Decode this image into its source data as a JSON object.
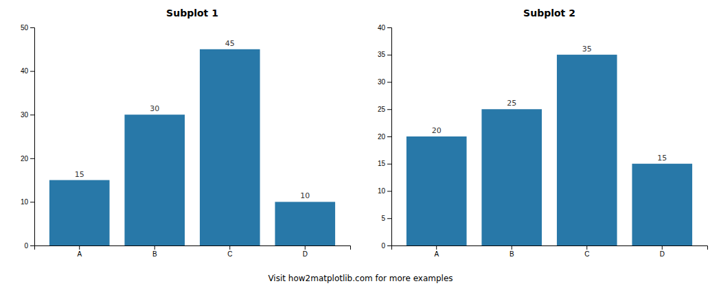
{
  "chart_data": [
    {
      "type": "bar",
      "title": "Subplot 1",
      "categories": [
        "A",
        "B",
        "C",
        "D"
      ],
      "values": [
        15,
        30,
        45,
        10
      ],
      "color": "#2878a8",
      "ylim": [
        0,
        50
      ],
      "yticks": [
        0,
        10,
        20,
        30,
        40,
        50
      ],
      "grid": false,
      "data_labels": true
    },
    {
      "type": "bar",
      "title": "Subplot 2",
      "categories": [
        "A",
        "B",
        "C",
        "D"
      ],
      "values": [
        20,
        25,
        35,
        15
      ],
      "color": "#2878a8",
      "ylim": [
        0,
        40
      ],
      "yticks": [
        0,
        5,
        10,
        15,
        20,
        25,
        30,
        35,
        40
      ],
      "grid": false,
      "data_labels": true
    }
  ],
  "footer": "Visit how2matplotlib.com for more examples"
}
